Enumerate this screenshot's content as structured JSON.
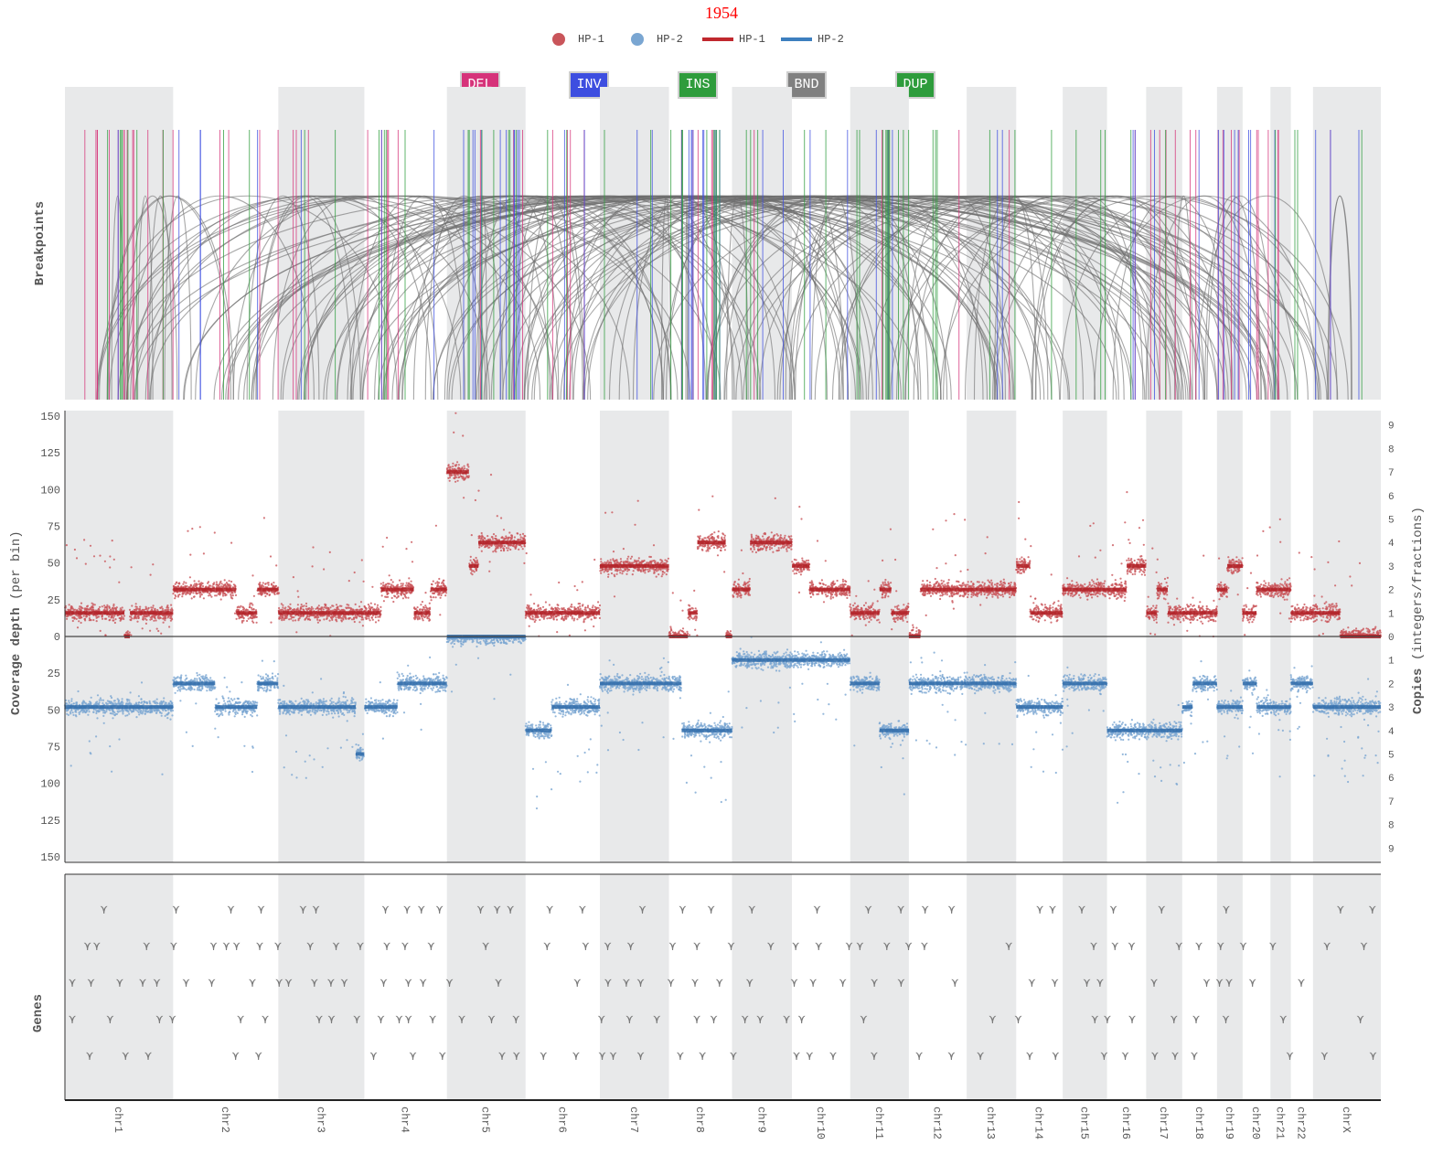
{
  "title": "1954",
  "legend": [
    {
      "label": "HP-1",
      "kind": "dot",
      "color": "#c9555a"
    },
    {
      "label": "HP-2",
      "kind": "dot",
      "color": "#7aa6d2"
    },
    {
      "label": "HP-1",
      "kind": "line",
      "color": "#c0282e"
    },
    {
      "label": "HP-2",
      "kind": "line",
      "color": "#3d7fbf"
    }
  ],
  "sv_types": [
    {
      "label": "DEL",
      "color": "#d6337a"
    },
    {
      "label": "INV",
      "color": "#3d4ee0"
    },
    {
      "label": "INS",
      "color": "#2e9c3c"
    },
    {
      "label": "BND",
      "color": "#808080"
    },
    {
      "label": "DUP",
      "color": "#2e9c3c"
    }
  ],
  "axis_labels": {
    "breakpoints": "Breakpoints",
    "coverage_bold": "Coverage depth",
    "coverage_light": "(per bin)",
    "copies_bold": "Copies",
    "copies_light": "(integers/fractions)",
    "genes": "Genes"
  },
  "chart_data": {
    "type": "scatter",
    "title": "1954",
    "chromosomes": [
      "chr1",
      "chr2",
      "chr3",
      "chr4",
      "chr5",
      "chr6",
      "chr7",
      "chr8",
      "chr9",
      "chr10",
      "chr11",
      "chr12",
      "chr13",
      "chr14",
      "chr15",
      "chr16",
      "chr17",
      "chr18",
      "chr19",
      "chr20",
      "chr21",
      "chr22",
      "chrX"
    ],
    "chrom_sizes_mb": [
      249,
      242,
      198,
      190,
      181,
      171,
      159,
      145,
      138,
      134,
      135,
      133,
      114,
      107,
      102,
      90,
      83,
      80,
      59,
      64,
      47,
      51,
      156
    ],
    "shaded": [
      true,
      false,
      true,
      false,
      true,
      false,
      true,
      false,
      true,
      false,
      true,
      false,
      true,
      false,
      true,
      false,
      true,
      false,
      true,
      false,
      true,
      false,
      true
    ],
    "coverage_ticks": [
      150,
      125,
      100,
      75,
      50,
      25,
      0,
      25,
      50,
      75,
      100,
      125,
      150
    ],
    "coverage_range": [
      -155,
      155
    ],
    "copies_ticks": [
      "9",
      "8",
      "7",
      "6",
      "5",
      "4",
      "3",
      "2",
      "1",
      "0",
      "1",
      "2",
      "3",
      "4",
      "5",
      "6",
      "7",
      "8",
      "9"
    ],
    "copies_ticks_top": [
      9,
      8,
      7,
      6,
      5,
      4,
      3,
      2,
      1,
      0
    ],
    "copies_ticks_bottom": [
      1,
      2,
      3,
      4,
      5,
      6,
      7,
      8,
      9
    ],
    "copies_per_depth": 16,
    "hp1_segments": [
      [
        [
          0,
          0.55,
          1
        ],
        [
          0.55,
          0.6,
          0
        ],
        [
          0.6,
          1,
          1
        ]
      ],
      [
        [
          0,
          0.4,
          2
        ],
        [
          0.4,
          0.6,
          2
        ],
        [
          0.6,
          0.8,
          1
        ],
        [
          0.8,
          1,
          2
        ]
      ],
      [
        [
          0,
          1,
          1
        ]
      ],
      [
        [
          0,
          0.2,
          1
        ],
        [
          0.2,
          0.6,
          2
        ],
        [
          0.6,
          0.8,
          1
        ],
        [
          0.8,
          1,
          2
        ]
      ],
      [
        [
          0,
          0.28,
          7
        ],
        [
          0.28,
          0.4,
          3
        ],
        [
          0.4,
          1,
          4
        ]
      ],
      [
        [
          0,
          0.3,
          1
        ],
        [
          0.3,
          1,
          1
        ]
      ],
      [
        [
          0,
          1,
          3
        ]
      ],
      [
        [
          0,
          0.3,
          0
        ],
        [
          0.3,
          0.45,
          1
        ],
        [
          0.45,
          0.9,
          4
        ],
        [
          0.9,
          1,
          0
        ]
      ],
      [
        [
          0,
          0.3,
          2
        ],
        [
          0.3,
          1,
          4
        ]
      ],
      [
        [
          0,
          0.3,
          3
        ],
        [
          0.3,
          1,
          2
        ]
      ],
      [
        [
          0,
          0.5,
          1
        ],
        [
          0.5,
          0.7,
          2
        ],
        [
          0.7,
          1,
          1
        ]
      ],
      [
        [
          0,
          0.2,
          0
        ],
        [
          0.2,
          1,
          2
        ]
      ],
      [
        [
          0,
          1,
          2
        ]
      ],
      [
        [
          0,
          0.3,
          3
        ],
        [
          0.3,
          1,
          1
        ]
      ],
      [
        [
          0,
          1,
          2
        ]
      ],
      [
        [
          0,
          0.5,
          2
        ],
        [
          0.5,
          1,
          3
        ]
      ],
      [
        [
          0,
          0.3,
          1
        ],
        [
          0.3,
          0.6,
          2
        ],
        [
          0.6,
          1,
          1
        ]
      ],
      [
        [
          0,
          1,
          1
        ]
      ],
      [
        [
          0,
          0.4,
          2
        ],
        [
          0.4,
          1,
          3
        ]
      ],
      [
        [
          0,
          0.5,
          1
        ],
        [
          0.5,
          1,
          2
        ]
      ],
      [
        [
          0,
          1,
          2
        ]
      ],
      [
        [
          0,
          1,
          1
        ]
      ],
      [
        [
          0,
          0.4,
          1
        ],
        [
          0.4,
          1,
          0
        ]
      ]
    ],
    "hp2_segments": [
      [
        [
          0,
          1,
          3
        ]
      ],
      [
        [
          0,
          0.4,
          2
        ],
        [
          0.4,
          0.8,
          3
        ],
        [
          0.8,
          1,
          2
        ]
      ],
      [
        [
          0,
          0.9,
          3
        ],
        [
          0.9,
          1,
          5
        ]
      ],
      [
        [
          0,
          0.4,
          3
        ],
        [
          0.4,
          1,
          2
        ]
      ],
      [
        [
          0,
          0.2,
          0
        ],
        [
          0.2,
          1,
          0
        ]
      ],
      [
        [
          0,
          0.35,
          4
        ],
        [
          0.35,
          1,
          3
        ]
      ],
      [
        [
          0,
          1,
          2
        ]
      ],
      [
        [
          0,
          0.2,
          2
        ],
        [
          0.2,
          0.6,
          4
        ],
        [
          0.6,
          1,
          4
        ]
      ],
      [
        [
          0,
          0.3,
          1
        ],
        [
          0.3,
          1,
          1
        ]
      ],
      [
        [
          0,
          1,
          1
        ]
      ],
      [
        [
          0,
          0.5,
          2
        ],
        [
          0.5,
          1,
          4
        ]
      ],
      [
        [
          0,
          1,
          2
        ]
      ],
      [
        [
          0,
          1,
          2
        ]
      ],
      [
        [
          0,
          1,
          3
        ]
      ],
      [
        [
          0,
          1,
          2
        ]
      ],
      [
        [
          0,
          1,
          4
        ]
      ],
      [
        [
          0,
          1,
          4
        ]
      ],
      [
        [
          0,
          0.3,
          3
        ],
        [
          0.3,
          1,
          2
        ]
      ],
      [
        [
          0,
          1,
          3
        ]
      ],
      [
        [
          0,
          0.5,
          2
        ],
        [
          0.5,
          1,
          3
        ]
      ],
      [
        [
          0,
          1,
          3
        ]
      ],
      [
        [
          0,
          1,
          2
        ]
      ],
      [
        [
          0,
          1,
          3
        ]
      ]
    ],
    "sv_counts": {
      "DEL": 60,
      "INV": 55,
      "INS": 45,
      "BND": 160,
      "DUP": 20
    },
    "gene_rows": 5
  },
  "colors": {
    "hp1_point": "#c9555a",
    "hp2_point": "#7aa6d2",
    "hp1_line": "#b01e24",
    "hp2_line": "#2e6aa8",
    "shade": "#e8e9ea",
    "title": "#ff0000",
    "gene_glyph": "#7a7a7a"
  }
}
